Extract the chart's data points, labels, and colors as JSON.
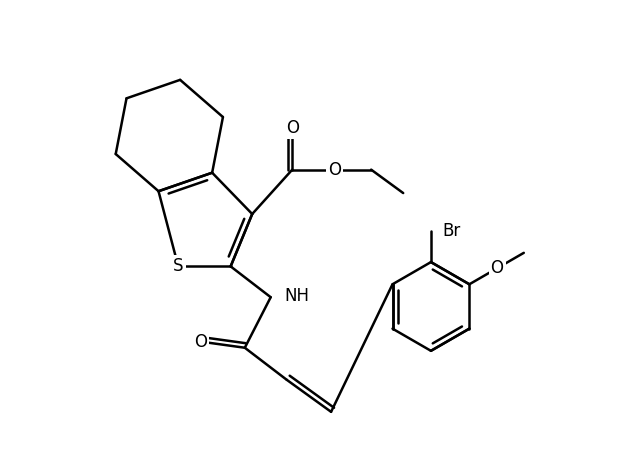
{
  "background_color": "#ffffff",
  "line_color": "#000000",
  "line_width": 1.8,
  "font_size": 12,
  "fig_width": 6.4,
  "fig_height": 4.65,
  "dpi": 100,
  "xlim": [
    0,
    10
  ],
  "ylim": [
    0,
    7.5
  ]
}
